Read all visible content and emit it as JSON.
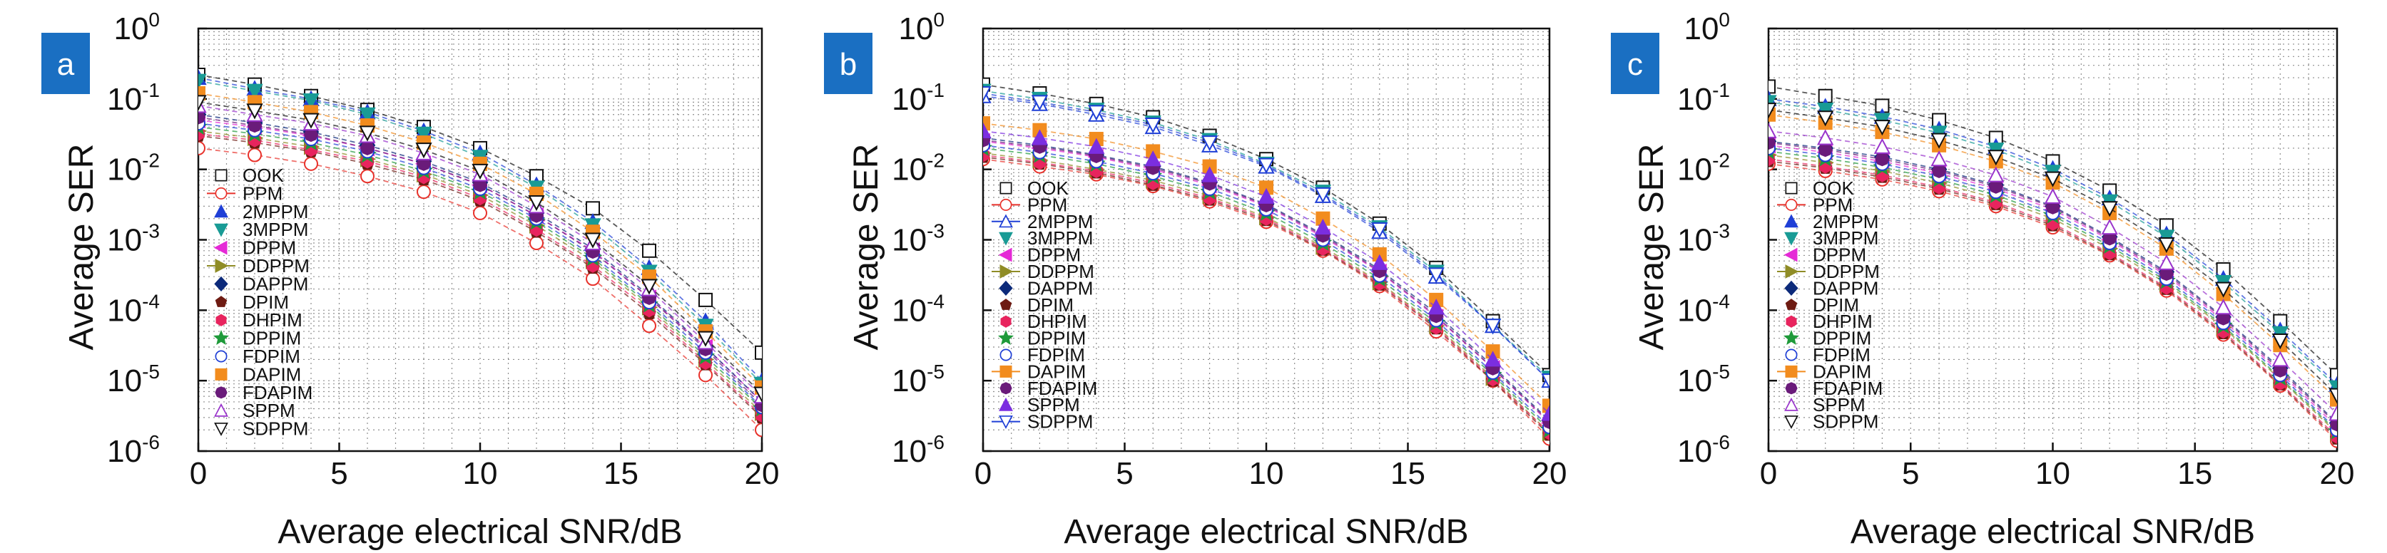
{
  "figure": {
    "panels": [
      {
        "label": "a",
        "xlabel": "Average electrical SNR/dB",
        "ylabel": "Average SER"
      },
      {
        "label": "b",
        "xlabel": "Average electrical SNR/dB",
        "ylabel": "Average SER"
      },
      {
        "label": "c",
        "xlabel": "Average electrical SNR/dB",
        "ylabel": "Average SER"
      }
    ],
    "x_ticks": [
      "0",
      "5",
      "10",
      "15",
      "20"
    ],
    "y_ticks": [
      {
        "base": "10",
        "exp": "0"
      },
      {
        "base": "10",
        "exp": "-1"
      },
      {
        "base": "10",
        "exp": "-2"
      },
      {
        "base": "10",
        "exp": "-3"
      },
      {
        "base": "10",
        "exp": "-4"
      },
      {
        "base": "10",
        "exp": "-5"
      },
      {
        "base": "10",
        "exp": "-6"
      }
    ],
    "label_badge_color": "#1a6fc2"
  },
  "chart_data": [
    {
      "type": "scatter",
      "panel": "a",
      "xlabel": "Average electrical SNR/dB",
      "ylabel": "Average SER",
      "xlim": [
        0,
        20
      ],
      "ylim": [
        1e-06,
        1
      ],
      "y_scale": "log",
      "grid": true,
      "legend_position": "left",
      "x": [
        0,
        2,
        4,
        6,
        8,
        10,
        12,
        14,
        16,
        18,
        20
      ],
      "series": [
        {
          "name": "OOK",
          "marker": "open-square",
          "color": "#111111",
          "values": [
            0.22,
            0.16,
            0.11,
            0.07,
            0.04,
            0.02,
            0.008,
            0.0028,
            0.0007,
            0.00014,
            2.5e-05
          ]
        },
        {
          "name": "PPM",
          "marker": "open-circle-line",
          "color": "#e8322b",
          "values": [
            0.02,
            0.016,
            0.012,
            0.008,
            0.0048,
            0.0024,
            0.0009,
            0.00028,
            6e-05,
            1.2e-05,
            2e-06
          ]
        },
        {
          "name": "2MPPM",
          "marker": "filled-triangle-up",
          "color": "#1f3fd6",
          "values": [
            0.2,
            0.14,
            0.1,
            0.065,
            0.035,
            0.017,
            0.006,
            0.0018,
            0.0004,
            7e-05,
            1e-05
          ]
        },
        {
          "name": "3MPPM",
          "marker": "filled-triangle-down",
          "color": "#199b95",
          "values": [
            0.18,
            0.13,
            0.095,
            0.06,
            0.032,
            0.015,
            0.0055,
            0.0016,
            0.00035,
            6e-05,
            9e-06
          ]
        },
        {
          "name": "DPPM",
          "marker": "filled-triangle-left",
          "color": "#e52ad6",
          "values": [
            0.05,
            0.04,
            0.03,
            0.02,
            0.012,
            0.006,
            0.0022,
            0.0007,
            0.00015,
            3e-05,
            5e-06
          ]
        },
        {
          "name": "DDPPM",
          "marker": "filled-triangle-right-line",
          "color": "#8f8c26",
          "values": [
            0.035,
            0.028,
            0.021,
            0.014,
            0.0085,
            0.0043,
            0.0016,
            0.0005,
            0.00011,
            2e-05,
            3.5e-06
          ]
        },
        {
          "name": "DAPPM",
          "marker": "filled-diamond",
          "color": "#0c2a7a",
          "values": [
            0.06,
            0.046,
            0.034,
            0.022,
            0.013,
            0.0065,
            0.0024,
            0.00075,
            0.00016,
            3e-05,
            5e-06
          ]
        },
        {
          "name": "DPIM",
          "marker": "filled-pentagon",
          "color": "#6e1b12",
          "values": [
            0.03,
            0.024,
            0.018,
            0.012,
            0.0072,
            0.0036,
            0.0013,
            0.0004,
            9e-05,
            1.7e-05,
            3e-06
          ]
        },
        {
          "name": "DHPIM",
          "marker": "filled-hexagon",
          "color": "#e8245e",
          "values": [
            0.032,
            0.026,
            0.019,
            0.013,
            0.0078,
            0.0039,
            0.0014,
            0.00043,
            0.0001,
            1.8e-05,
            3.2e-06
          ]
        },
        {
          "name": "DPPIM",
          "marker": "filled-star",
          "color": "#1f9a3a",
          "values": [
            0.04,
            0.032,
            0.024,
            0.016,
            0.0095,
            0.0048,
            0.0018,
            0.00055,
            0.00012,
            2.2e-05,
            4e-06
          ]
        },
        {
          "name": "FDPIM",
          "marker": "open-circle",
          "color": "#1f3fd6",
          "values": [
            0.045,
            0.036,
            0.027,
            0.018,
            0.0105,
            0.0053,
            0.002,
            0.0006,
            0.00013,
            2.5e-05,
            4.2e-06
          ]
        },
        {
          "name": "DAPIM",
          "marker": "filled-square",
          "color": "#f28c1e",
          "values": [
            0.12,
            0.09,
            0.065,
            0.042,
            0.024,
            0.012,
            0.0045,
            0.0013,
            0.0003,
            5e-05,
            8e-06
          ]
        },
        {
          "name": "FDAPIM",
          "marker": "filled-octagon",
          "color": "#6a1b7a",
          "values": [
            0.055,
            0.042,
            0.031,
            0.02,
            0.012,
            0.006,
            0.0022,
            0.00068,
            0.00015,
            2.8e-05,
            4.5e-06
          ]
        },
        {
          "name": "SPPM",
          "marker": "open-triangle-up",
          "color": "#9933cc",
          "values": [
            0.08,
            0.06,
            0.045,
            0.03,
            0.017,
            0.0085,
            0.003,
            0.0009,
            0.0002,
            3.5e-05,
            6e-06
          ]
        },
        {
          "name": "SDPPM",
          "marker": "open-triangle-down",
          "color": "#111111",
          "values": [
            0.09,
            0.068,
            0.05,
            0.033,
            0.019,
            0.0095,
            0.0034,
            0.001,
            0.00022,
            4e-05,
            6.5e-06
          ]
        }
      ]
    },
    {
      "type": "scatter",
      "panel": "b",
      "xlabel": "Average electrical SNR/dB",
      "ylabel": "Average SER",
      "xlim": [
        0,
        20
      ],
      "ylim": [
        1e-06,
        1
      ],
      "y_scale": "log",
      "grid": true,
      "legend_position": "left",
      "x": [
        0,
        2,
        4,
        6,
        8,
        10,
        12,
        14,
        16,
        18,
        20
      ],
      "series": [
        {
          "name": "OOK",
          "marker": "open-square",
          "color": "#111111",
          "values": [
            0.16,
            0.12,
            0.085,
            0.055,
            0.03,
            0.014,
            0.0055,
            0.0017,
            0.0004,
            7e-05,
            1.2e-05
          ]
        },
        {
          "name": "PPM",
          "marker": "open-circle-line",
          "color": "#e8322b",
          "values": [
            0.014,
            0.011,
            0.0085,
            0.0058,
            0.0035,
            0.0018,
            0.0007,
            0.00022,
            5e-05,
            1e-05,
            1.5e-06
          ]
        },
        {
          "name": "2MPPM",
          "marker": "open-triangle-up-line",
          "color": "#1f3fd6",
          "values": [
            0.11,
            0.085,
            0.06,
            0.04,
            0.022,
            0.011,
            0.0042,
            0.0013,
            0.0003,
            6e-05,
            1e-05
          ]
        },
        {
          "name": "3MPPM",
          "marker": "filled-triangle-down",
          "color": "#199b95",
          "values": [
            0.13,
            0.1,
            0.07,
            0.046,
            0.026,
            0.012,
            0.0048,
            0.0015,
            0.00035,
            6e-05,
            1.1e-05
          ]
        },
        {
          "name": "DPPM",
          "marker": "filled-triangle-left",
          "color": "#e52ad6",
          "values": [
            0.025,
            0.02,
            0.015,
            0.01,
            0.006,
            0.003,
            0.0011,
            0.00035,
            8e-05,
            1.5e-05,
            2.5e-06
          ]
        },
        {
          "name": "DDPPM",
          "marker": "filled-triangle-right-line",
          "color": "#8f8c26",
          "values": [
            0.017,
            0.0135,
            0.01,
            0.007,
            0.0042,
            0.0021,
            0.0008,
            0.00025,
            6e-05,
            1.1e-05,
            1.8e-06
          ]
        },
        {
          "name": "DAPPM",
          "marker": "filled-diamond",
          "color": "#0c2a7a",
          "values": [
            0.028,
            0.022,
            0.016,
            0.011,
            0.0065,
            0.0032,
            0.0012,
            0.00038,
            9e-05,
            1.6e-05,
            2.7e-06
          ]
        },
        {
          "name": "DPIM",
          "marker": "filled-pentagon",
          "color": "#6e1b12",
          "values": [
            0.015,
            0.012,
            0.009,
            0.006,
            0.0037,
            0.0019,
            0.00072,
            0.00023,
            5.5e-05,
            1e-05,
            1.7e-06
          ]
        },
        {
          "name": "DHPIM",
          "marker": "filled-hexagon",
          "color": "#e8245e",
          "values": [
            0.016,
            0.0125,
            0.0095,
            0.0064,
            0.0039,
            0.002,
            0.00075,
            0.00024,
            5.7e-05,
            1.05e-05,
            1.8e-06
          ]
        },
        {
          "name": "DPPIM",
          "marker": "filled-star",
          "color": "#1f9a3a",
          "values": [
            0.02,
            0.016,
            0.012,
            0.008,
            0.0048,
            0.0024,
            0.0009,
            0.00028,
            6.6e-05,
            1.2e-05,
            2e-06
          ]
        },
        {
          "name": "FDPIM",
          "marker": "open-circle",
          "color": "#1f3fd6",
          "values": [
            0.022,
            0.0175,
            0.013,
            0.0088,
            0.0053,
            0.0027,
            0.001,
            0.00031,
            7.2e-05,
            1.3e-05,
            2.2e-06
          ]
        },
        {
          "name": "DAPIM",
          "marker": "filled-square-line",
          "color": "#f28c1e",
          "values": [
            0.045,
            0.036,
            0.027,
            0.018,
            0.011,
            0.0055,
            0.002,
            0.00062,
            0.00014,
            2.6e-05,
            4.4e-06
          ]
        },
        {
          "name": "FDAPIM",
          "marker": "filled-octagon",
          "color": "#6a1b7a",
          "values": [
            0.026,
            0.021,
            0.0155,
            0.0105,
            0.0063,
            0.0031,
            0.00115,
            0.00036,
            8.3e-05,
            1.5e-05,
            2.6e-06
          ]
        },
        {
          "name": "SPPM",
          "marker": "filled-triangle-up",
          "color": "#7b2ee0",
          "values": [
            0.035,
            0.028,
            0.021,
            0.014,
            0.0083,
            0.0041,
            0.0015,
            0.00047,
            0.00011,
            2e-05,
            3.4e-06
          ]
        },
        {
          "name": "SDPPM",
          "marker": "open-triangle-down-line",
          "color": "#1f3fd6",
          "values": [
            0.12,
            0.09,
            0.065,
            0.043,
            0.024,
            0.0115,
            0.0044,
            0.0014,
            0.00032,
            6e-05,
            1e-05
          ]
        }
      ]
    },
    {
      "type": "scatter",
      "panel": "c",
      "xlabel": "Average electrical SNR/dB",
      "ylabel": "Average SER",
      "xlim": [
        0,
        20
      ],
      "ylim": [
        1e-06,
        1
      ],
      "y_scale": "log",
      "grid": true,
      "legend_position": "left",
      "x": [
        0,
        2,
        4,
        6,
        8,
        10,
        12,
        14,
        16,
        18,
        20
      ],
      "series": [
        {
          "name": "OOK",
          "marker": "open-square",
          "color": "#111111",
          "values": [
            0.15,
            0.11,
            0.08,
            0.05,
            0.028,
            0.013,
            0.005,
            0.0016,
            0.00038,
            7e-05,
            1.2e-05
          ]
        },
        {
          "name": "PPM",
          "marker": "open-circle-line",
          "color": "#e8322b",
          "values": [
            0.012,
            0.0095,
            0.0072,
            0.0049,
            0.003,
            0.0015,
            0.0006,
            0.00019,
            4.5e-05,
            8.5e-06,
            1.4e-06
          ]
        },
        {
          "name": "2MPPM",
          "marker": "filled-triangle-up",
          "color": "#1f3fd6",
          "values": [
            0.1,
            0.078,
            0.056,
            0.037,
            0.021,
            0.0102,
            0.0039,
            0.0012,
            0.00028,
            5.2e-05,
            8.8e-06
          ]
        },
        {
          "name": "3MPPM",
          "marker": "filled-triangle-down",
          "color": "#199b95",
          "values": [
            0.09,
            0.07,
            0.05,
            0.033,
            0.019,
            0.0092,
            0.0035,
            0.0011,
            0.00025,
            4.7e-05,
            8e-06
          ]
        },
        {
          "name": "DPPM",
          "marker": "filled-triangle-left",
          "color": "#e52ad6",
          "values": [
            0.022,
            0.0175,
            0.013,
            0.0088,
            0.0053,
            0.0027,
            0.001,
            0.00031,
            7.2e-05,
            1.3e-05,
            2.2e-06
          ]
        },
        {
          "name": "DDPPM",
          "marker": "filled-triangle-right-line",
          "color": "#8f8c26",
          "values": [
            0.016,
            0.0125,
            0.0095,
            0.0064,
            0.0039,
            0.002,
            0.00075,
            0.00024,
            5.7e-05,
            1.05e-05,
            1.8e-06
          ]
        },
        {
          "name": "DAPPM",
          "marker": "filled-diamond",
          "color": "#0c2a7a",
          "values": [
            0.025,
            0.02,
            0.015,
            0.01,
            0.006,
            0.003,
            0.0011,
            0.00035,
            8e-05,
            1.5e-05,
            2.5e-06
          ]
        },
        {
          "name": "DPIM",
          "marker": "filled-pentagon",
          "color": "#6e1b12",
          "values": [
            0.013,
            0.0105,
            0.0078,
            0.0053,
            0.0032,
            0.0016,
            0.00062,
            0.0002,
            4.7e-05,
            8.8e-06,
            1.5e-06
          ]
        },
        {
          "name": "DHPIM",
          "marker": "filled-hexagon",
          "color": "#e8245e",
          "values": [
            0.014,
            0.011,
            0.0083,
            0.0056,
            0.0034,
            0.0017,
            0.00065,
            0.00021,
            5e-05,
            9.2e-06,
            1.6e-06
          ]
        },
        {
          "name": "DPPIM",
          "marker": "filled-star",
          "color": "#1f9a3a",
          "values": [
            0.018,
            0.0143,
            0.0107,
            0.0072,
            0.0043,
            0.0022,
            0.00082,
            0.00026,
            6e-05,
            1.1e-05,
            1.9e-06
          ]
        },
        {
          "name": "FDPIM",
          "marker": "open-circle",
          "color": "#1f3fd6",
          "values": [
            0.02,
            0.016,
            0.012,
            0.008,
            0.0048,
            0.0024,
            0.0009,
            0.00028,
            6.6e-05,
            1.2e-05,
            2e-06
          ]
        },
        {
          "name": "DAPIM",
          "marker": "filled-square-line",
          "color": "#f28c1e",
          "values": [
            0.06,
            0.046,
            0.034,
            0.022,
            0.013,
            0.0065,
            0.0024,
            0.00075,
            0.00017,
            3.2e-05,
            5.4e-06
          ]
        },
        {
          "name": "FDAPIM",
          "marker": "filled-octagon",
          "color": "#6a1b7a",
          "values": [
            0.024,
            0.019,
            0.014,
            0.0095,
            0.0057,
            0.0029,
            0.00105,
            0.00033,
            7.7e-05,
            1.4e-05,
            2.4e-06
          ]
        },
        {
          "name": "SPPM",
          "marker": "open-triangle-up",
          "color": "#9933cc",
          "values": [
            0.035,
            0.028,
            0.021,
            0.014,
            0.0083,
            0.0041,
            0.0015,
            0.00047,
            0.00011,
            2e-05,
            3.4e-06
          ]
        },
        {
          "name": "SDPPM",
          "marker": "open-triangle-down",
          "color": "#111111",
          "values": [
            0.07,
            0.054,
            0.04,
            0.026,
            0.015,
            0.0074,
            0.0028,
            0.00086,
            0.0002,
            3.7e-05,
            6.2e-06
          ]
        }
      ]
    }
  ]
}
